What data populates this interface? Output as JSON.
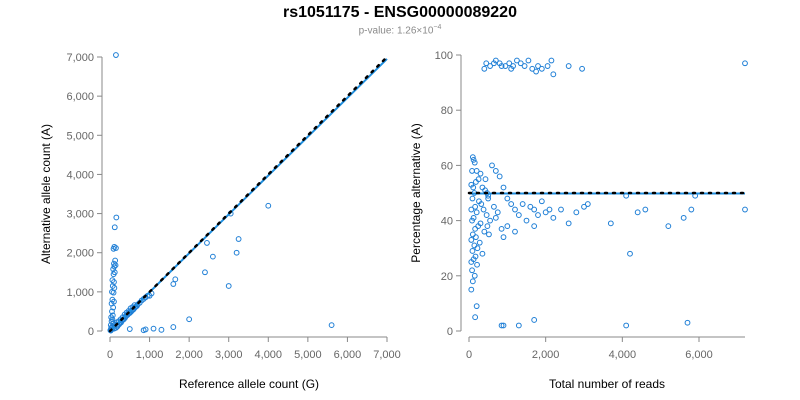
{
  "title": "rs1051175 - ENSG00000089220",
  "subtitle": {
    "prefix": "p-value: 1.26×10",
    "exponent": "−4"
  },
  "colors": {
    "points": "#1f7fd6",
    "fit": "#1f8fe0",
    "reference": "#000000",
    "axis": "#888888"
  },
  "chart_data": [
    {
      "type": "scatter",
      "xlabel": "Reference allele count (G)",
      "ylabel": "Alternative allele count (A)",
      "xlim": [
        0,
        7000
      ],
      "ylim": [
        0,
        7000
      ],
      "xticks": [
        0,
        1000,
        2000,
        3000,
        4000,
        5000,
        6000,
        7000
      ],
      "yticks": [
        0,
        1000,
        2000,
        3000,
        4000,
        5000,
        6000,
        7000
      ],
      "xtick_labels": [
        "0",
        "1,000",
        "2,000",
        "3,000",
        "4,000",
        "5,000",
        "6,000",
        "7,000"
      ],
      "ytick_labels": [
        "0",
        "1,000",
        "2,000",
        "3,000",
        "4,000",
        "5,000",
        "6,000",
        "7,000"
      ],
      "reference_line": {
        "style": "dotted",
        "x": [
          0,
          7000
        ],
        "y": [
          0,
          7000
        ]
      },
      "fit_line": {
        "style": "solid",
        "x": [
          0,
          7000
        ],
        "y": [
          0,
          6950
        ]
      },
      "points": [
        [
          150,
          7050
        ],
        [
          160,
          2900
        ],
        [
          120,
          2650
        ],
        [
          110,
          2150
        ],
        [
          150,
          2120
        ],
        [
          90,
          2100
        ],
        [
          130,
          1800
        ],
        [
          100,
          1720
        ],
        [
          140,
          1680
        ],
        [
          110,
          1650
        ],
        [
          80,
          1580
        ],
        [
          120,
          1500
        ],
        [
          90,
          1450
        ],
        [
          60,
          1300
        ],
        [
          100,
          1250
        ],
        [
          70,
          1150
        ],
        [
          110,
          1100
        ],
        [
          50,
          1000
        ],
        [
          90,
          980
        ],
        [
          60,
          800
        ],
        [
          100,
          750
        ],
        [
          40,
          700
        ],
        [
          80,
          600
        ],
        [
          50,
          500
        ],
        [
          70,
          400
        ],
        [
          30,
          350
        ],
        [
          60,
          300
        ],
        [
          40,
          250
        ],
        [
          80,
          200
        ],
        [
          20,
          150
        ],
        [
          60,
          120
        ],
        [
          30,
          80
        ],
        [
          50,
          50
        ],
        [
          10,
          20
        ],
        [
          20,
          10
        ],
        [
          100,
          60
        ],
        [
          150,
          80
        ],
        [
          200,
          140
        ],
        [
          250,
          200
        ],
        [
          300,
          260
        ],
        [
          350,
          300
        ],
        [
          400,
          380
        ],
        [
          450,
          420
        ],
        [
          500,
          460
        ],
        [
          550,
          520
        ],
        [
          600,
          560
        ],
        [
          650,
          620
        ],
        [
          700,
          680
        ],
        [
          750,
          720
        ],
        [
          800,
          780
        ],
        [
          850,
          820
        ],
        [
          900,
          860
        ],
        [
          950,
          900
        ],
        [
          180,
          110
        ],
        [
          230,
          170
        ],
        [
          280,
          220
        ],
        [
          330,
          290
        ],
        [
          380,
          340
        ],
        [
          430,
          400
        ],
        [
          480,
          450
        ],
        [
          530,
          490
        ],
        [
          580,
          540
        ],
        [
          630,
          600
        ],
        [
          680,
          640
        ],
        [
          120,
          150
        ],
        [
          170,
          220
        ],
        [
          220,
          250
        ],
        [
          270,
          300
        ],
        [
          320,
          350
        ],
        [
          370,
          420
        ],
        [
          420,
          470
        ],
        [
          470,
          510
        ],
        [
          520,
          580
        ],
        [
          570,
          610
        ],
        [
          620,
          660
        ],
        [
          1000,
          900
        ],
        [
          1050,
          960
        ],
        [
          1600,
          1200
        ],
        [
          1650,
          1320
        ],
        [
          2400,
          1500
        ],
        [
          2450,
          2250
        ],
        [
          2600,
          1900
        ],
        [
          3200,
          2000
        ],
        [
          3250,
          2350
        ],
        [
          3050,
          3000
        ],
        [
          3000,
          1150
        ],
        [
          4000,
          3200
        ],
        [
          5600,
          150
        ],
        [
          1600,
          100
        ],
        [
          1300,
          30
        ],
        [
          1100,
          60
        ],
        [
          850,
          20
        ],
        [
          900,
          40
        ],
        [
          2000,
          300
        ],
        [
          500,
          50
        ]
      ]
    },
    {
      "type": "scatter",
      "xlabel": "Total number of reads",
      "ylabel": "Percentage alternative (A)",
      "xlim": [
        0,
        7200
      ],
      "ylim": [
        0,
        100
      ],
      "xticks": [
        0,
        2000,
        4000,
        6000
      ],
      "yticks": [
        0,
        20,
        40,
        60,
        80,
        100
      ],
      "xtick_labels": [
        "0",
        "2,000",
        "4,000",
        "6,000"
      ],
      "ytick_labels": [
        "0",
        "20",
        "40",
        "60",
        "80",
        "100"
      ],
      "reference_line": {
        "style": "dotted",
        "x": [
          0,
          7200
        ],
        "y": [
          50,
          50
        ]
      },
      "fit_line": {
        "style": "solid",
        "x": [
          0,
          7200
        ],
        "y": [
          49.8,
          49.8
        ]
      },
      "points": [
        [
          400,
          95
        ],
        [
          450,
          97
        ],
        [
          550,
          96
        ],
        [
          650,
          97
        ],
        [
          700,
          98
        ],
        [
          800,
          97
        ],
        [
          950,
          96
        ],
        [
          1050,
          97
        ],
        [
          1150,
          96
        ],
        [
          1250,
          98
        ],
        [
          1350,
          97
        ],
        [
          1450,
          96
        ],
        [
          1550,
          98
        ],
        [
          1650,
          95
        ],
        [
          1750,
          94
        ],
        [
          1800,
          96
        ],
        [
          1900,
          95
        ],
        [
          2050,
          96
        ],
        [
          2150,
          98
        ],
        [
          2200,
          93
        ],
        [
          2600,
          96
        ],
        [
          2950,
          95
        ],
        [
          7200,
          97
        ],
        [
          850,
          96
        ],
        [
          1100,
          95
        ],
        [
          100,
          63
        ],
        [
          120,
          62
        ],
        [
          150,
          61
        ],
        [
          80,
          58
        ],
        [
          200,
          58
        ],
        [
          300,
          57
        ],
        [
          250,
          55
        ],
        [
          180,
          54
        ],
        [
          60,
          53
        ],
        [
          350,
          52
        ],
        [
          110,
          52
        ],
        [
          420,
          51
        ],
        [
          140,
          50
        ],
        [
          500,
          49
        ],
        [
          90,
          48
        ],
        [
          260,
          47
        ],
        [
          320,
          46
        ],
        [
          160,
          45
        ],
        [
          60,
          44
        ],
        [
          380,
          44
        ],
        [
          200,
          43
        ],
        [
          460,
          42
        ],
        [
          120,
          41
        ],
        [
          80,
          40
        ],
        [
          300,
          39
        ],
        [
          240,
          38
        ],
        [
          160,
          37
        ],
        [
          400,
          36
        ],
        [
          100,
          35
        ],
        [
          180,
          34
        ],
        [
          60,
          33
        ],
        [
          280,
          32
        ],
        [
          140,
          31
        ],
        [
          220,
          30
        ],
        [
          90,
          29
        ],
        [
          350,
          28
        ],
        [
          170,
          27
        ],
        [
          120,
          26
        ],
        [
          60,
          25
        ],
        [
          210,
          24
        ],
        [
          80,
          22
        ],
        [
          150,
          20
        ],
        [
          100,
          18
        ],
        [
          60,
          15
        ],
        [
          200,
          9
        ],
        [
          160,
          5
        ],
        [
          600,
          60
        ],
        [
          700,
          58
        ],
        [
          800,
          56
        ],
        [
          900,
          52
        ],
        [
          1000,
          48
        ],
        [
          1100,
          46
        ],
        [
          1200,
          44
        ],
        [
          1300,
          42
        ],
        [
          1400,
          46
        ],
        [
          1500,
          40
        ],
        [
          1600,
          45
        ],
        [
          1700,
          44
        ],
        [
          1800,
          42
        ],
        [
          1900,
          47
        ],
        [
          2000,
          43
        ],
        [
          2200,
          41
        ],
        [
          2400,
          44
        ],
        [
          2600,
          39
        ],
        [
          2800,
          43
        ],
        [
          3000,
          45
        ],
        [
          3100,
          46
        ],
        [
          1200,
          36
        ],
        [
          1000,
          38
        ],
        [
          900,
          34
        ],
        [
          850,
          37
        ],
        [
          2100,
          44
        ],
        [
          1700,
          38
        ],
        [
          3700,
          39
        ],
        [
          4100,
          49
        ],
        [
          4200,
          28
        ],
        [
          4400,
          43
        ],
        [
          4600,
          44
        ],
        [
          5200,
          38
        ],
        [
          5600,
          41
        ],
        [
          5800,
          44
        ],
        [
          5900,
          49
        ],
        [
          7200,
          44
        ],
        [
          4100,
          2
        ],
        [
          5700,
          3
        ],
        [
          1300,
          2
        ],
        [
          1700,
          4
        ],
        [
          850,
          2
        ],
        [
          900,
          2
        ],
        [
          500,
          48
        ],
        [
          650,
          45
        ],
        [
          700,
          41
        ],
        [
          750,
          43
        ],
        [
          550,
          40
        ],
        [
          480,
          38
        ],
        [
          520,
          35
        ],
        [
          430,
          55
        ],
        [
          470,
          50
        ]
      ]
    }
  ]
}
